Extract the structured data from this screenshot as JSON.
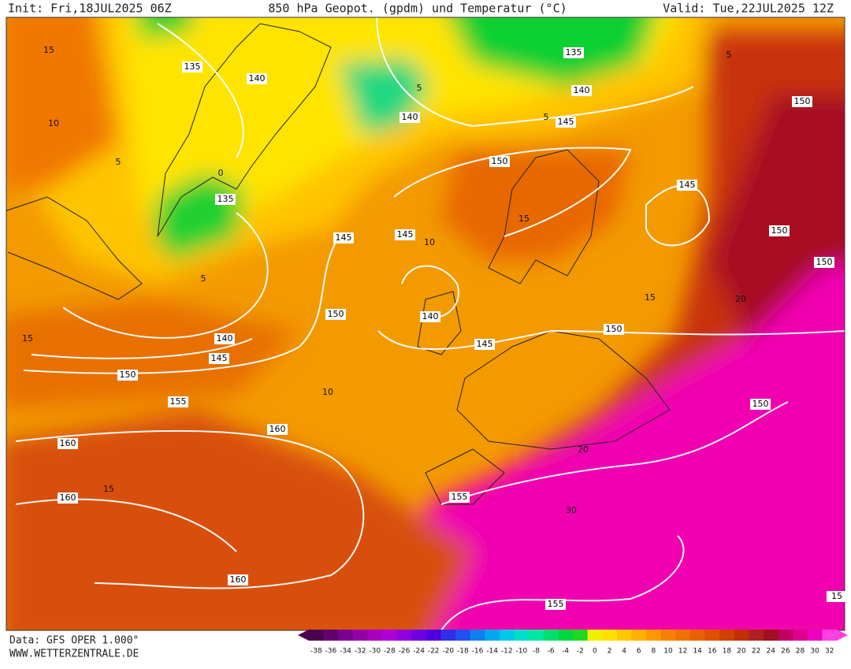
{
  "header": {
    "init": "Init: Fri,18JUL2025 06Z",
    "title": "850 hPa Geopot. (gpdm) und Temperatur (°C)",
    "valid": "Valid: Tue,22JUL2025 12Z"
  },
  "geopotential_labels": [
    135,
    140,
    135,
    140,
    140,
    145,
    150,
    135,
    150,
    145,
    150,
    145,
    145,
    150,
    150,
    140,
    140,
    145,
    145,
    150,
    150,
    155,
    150,
    160,
    160,
    160,
    155,
    160,
    155,
    15
  ],
  "temperature_labels": [
    15,
    10,
    5,
    0,
    5,
    15,
    10,
    15,
    10,
    15,
    15,
    20,
    30,
    20,
    5,
    5,
    5
  ],
  "color_scale": {
    "values": [
      -38,
      -36,
      -34,
      -32,
      -30,
      -28,
      -26,
      -24,
      -22,
      -20,
      -18,
      -16,
      -14,
      -12,
      -10,
      -8,
      -6,
      -4,
      -2,
      0,
      2,
      4,
      6,
      8,
      10,
      12,
      14,
      16,
      18,
      20,
      22,
      24,
      26,
      28,
      30,
      32
    ],
    "colors": [
      "#4b0050",
      "#62006e",
      "#7a0090",
      "#9400a8",
      "#a800c0",
      "#b000d8",
      "#9000e0",
      "#7000e0",
      "#5000e0",
      "#3030e8",
      "#2050f0",
      "#1080f0",
      "#00a8f0",
      "#00c8e8",
      "#00e0c8",
      "#00e8a0",
      "#00e070",
      "#00d840",
      "#20d820",
      "#f0f000",
      "#ffe000",
      "#ffc800",
      "#ffb000",
      "#ff9800",
      "#f88000",
      "#f07000",
      "#e86000",
      "#e05000",
      "#d04000",
      "#c03000",
      "#b02020",
      "#a01020",
      "#c00060",
      "#e00090",
      "#f000c0",
      "#ff40e0"
    ]
  },
  "footer": {
    "data_source": "Data: GFS OPER 1.000°",
    "website": "WWW.WETTERZENTRALE.DE"
  }
}
